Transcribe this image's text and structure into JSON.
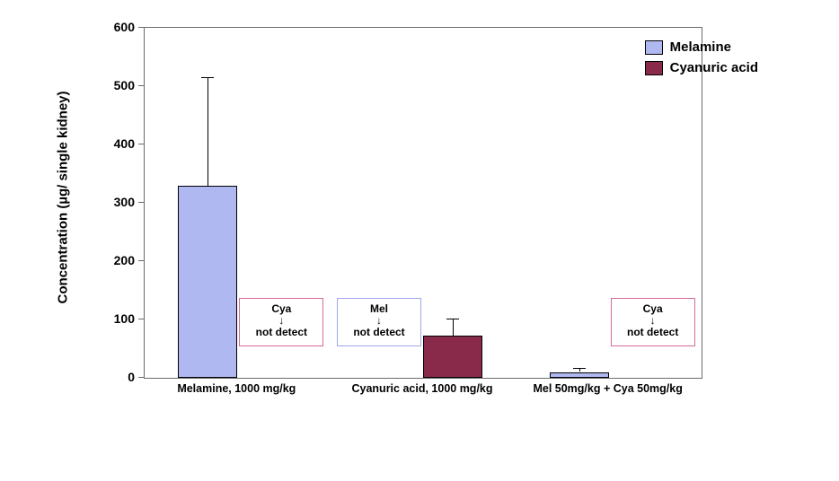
{
  "chart": {
    "type": "bar",
    "background_color": "#ffffff",
    "plot_border_color": "#6b6b6b",
    "ylabel": "Concentration (µg/ single kidney)",
    "label_fontsize": 15,
    "tick_fontsize": 14,
    "ylim": [
      0,
      600
    ],
    "ytick_step": 100,
    "yticks": [
      0,
      100,
      200,
      300,
      400,
      500,
      600
    ],
    "categories": [
      "Melamine, 1000 mg/kg",
      "Cyanuric acid, 1000 mg/kg",
      "Mel 50mg/kg + Cya 50mg/kg"
    ],
    "category_fontsize": 12.5,
    "series": [
      {
        "name": "Melamine",
        "color": "#b0b8f2",
        "values": [
          330,
          0,
          10
        ],
        "errors": [
          185,
          0,
          7
        ]
      },
      {
        "name": "Cyanuric acid",
        "color": "#8a2a4a",
        "values": [
          0,
          72,
          0
        ],
        "errors": [
          0,
          30,
          0
        ]
      }
    ],
    "legend": {
      "position": "top-right",
      "fontsize": 15,
      "items": [
        {
          "label": "Melamine",
          "color": "#b0b8f2"
        },
        {
          "label": "Cyanuric acid",
          "color": "#8a2a4a"
        }
      ]
    },
    "not_detect": [
      {
        "group": 0,
        "label_top": "Cya",
        "text": "not detect",
        "border_color": "#d46a9b"
      },
      {
        "group": 1,
        "label_top": "Mel",
        "text": "not detect",
        "border_color": "#9ea8e6"
      },
      {
        "group": 2,
        "label_top": "Cya",
        "text": "not detect",
        "border_color": "#d46a9b"
      }
    ],
    "bar_width": 0.32,
    "error_cap_width": 14,
    "text_color": "#000000"
  }
}
